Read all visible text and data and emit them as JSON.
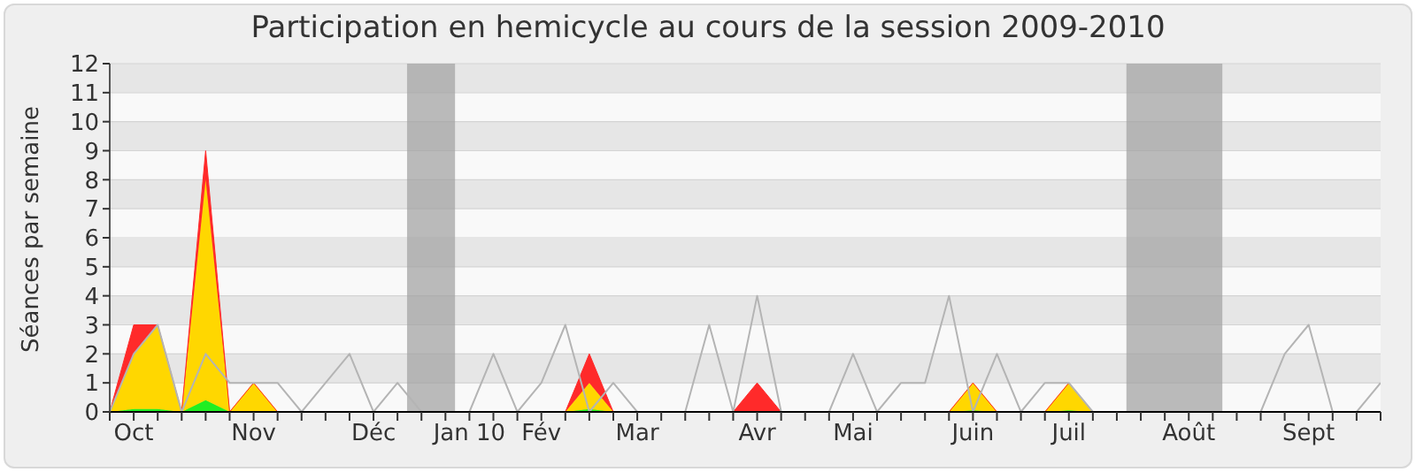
{
  "chart_data": {
    "type": "area",
    "title": "Participation en hemicycle au cours de la session 2009-2010",
    "ylabel": "Séances par semaine",
    "categories": [
      null,
      "Oct",
      null,
      null,
      null,
      null,
      "Nov",
      null,
      null,
      null,
      null,
      "Déc",
      null,
      null,
      null,
      "Jan 10",
      null,
      null,
      "Fév",
      null,
      null,
      null,
      "Mar",
      null,
      null,
      null,
      null,
      "Avr",
      null,
      null,
      null,
      "Mai",
      null,
      null,
      null,
      null,
      "Juin",
      null,
      null,
      null,
      "Juil",
      null,
      null,
      null,
      null,
      "Août",
      null,
      null,
      null,
      null,
      "Sept",
      null,
      null,
      null
    ],
    "stacked": true,
    "series": [
      {
        "color": "#22ee22",
        "values": [
          0,
          0.1,
          0.1,
          0,
          0.4,
          0,
          0,
          0,
          0,
          0,
          0,
          0,
          0,
          0,
          0,
          0,
          0,
          0,
          0,
          0,
          0.1,
          0,
          0,
          0,
          0,
          0,
          0,
          0,
          0,
          0,
          0,
          0,
          0,
          0,
          0,
          0,
          0.05,
          0,
          0,
          0,
          0.05,
          0,
          0,
          0,
          0,
          0,
          0,
          0,
          0,
          0,
          0,
          0,
          0,
          0
        ]
      },
      {
        "color": "#ffd700",
        "values": [
          0,
          1.9,
          2.9,
          0,
          7.6,
          0,
          1,
          0,
          0,
          0,
          0,
          0,
          0,
          0,
          0,
          0,
          0,
          0,
          0,
          0,
          0.9,
          0,
          0,
          0,
          0,
          0,
          0,
          0,
          0,
          0,
          0,
          0,
          0,
          0,
          0,
          0,
          0.95,
          0,
          0,
          0,
          0.95,
          0,
          0,
          0,
          0,
          0,
          0,
          0,
          0,
          0,
          0,
          0,
          0,
          0
        ]
      },
      {
        "color": "#ff2a2a",
        "values": [
          0,
          1,
          0,
          0,
          1,
          0,
          0,
          0,
          0,
          0,
          0,
          0,
          0,
          0,
          0,
          0,
          0,
          0,
          0,
          0,
          1,
          0,
          0,
          0,
          0,
          0,
          0,
          1,
          0,
          0,
          0,
          0,
          0,
          0,
          0,
          0,
          0,
          0,
          0,
          0,
          0,
          0,
          0,
          0,
          0,
          0,
          0,
          0,
          0,
          0,
          0,
          0,
          0,
          0
        ]
      },
      {
        "type": "line",
        "color": "#b4b4b4",
        "values": [
          0,
          2,
          3,
          0,
          2,
          1,
          1,
          1,
          0,
          1,
          2,
          0,
          1,
          0,
          0,
          0,
          2,
          0,
          1,
          3,
          0,
          1,
          0,
          0,
          0,
          3,
          0,
          4,
          0,
          0,
          0,
          2,
          0,
          1,
          1,
          4,
          0,
          2,
          0,
          1,
          1,
          0,
          0,
          0,
          0,
          0,
          0,
          0,
          0,
          2,
          3,
          0,
          0,
          1
        ]
      }
    ],
    "ylim": [
      0,
      12
    ],
    "yticks": [
      0,
      1,
      2,
      3,
      4,
      5,
      6,
      7,
      8,
      9,
      10,
      11,
      12
    ],
    "grid": "y",
    "legend": false,
    "marker": "none"
  }
}
